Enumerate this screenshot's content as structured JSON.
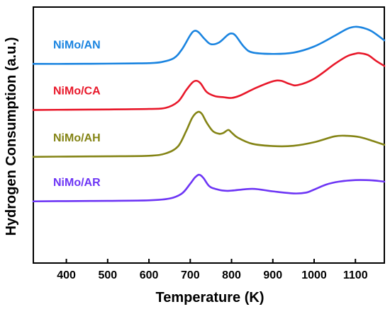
{
  "chart_data": {
    "type": "line",
    "xlabel": "Temperature (K)",
    "ylabel": "Hydrogen Consumption (a.u.)",
    "xlim": [
      320,
      1170
    ],
    "ylim": [
      0,
      1
    ],
    "xticks": [
      400,
      500,
      600,
      700,
      800,
      900,
      1000,
      1100
    ],
    "grid": false,
    "legend": "inline labels on left",
    "series": [
      {
        "name": "NiMo/AN",
        "color": "#1a84e0",
        "x": [
          320,
          400,
          500,
          560,
          600,
          630,
          660,
          680,
          700,
          710,
          720,
          735,
          750,
          770,
          790,
          800,
          810,
          830,
          850,
          900,
          950,
          1000,
          1050,
          1080,
          1100,
          1120,
          1140,
          1170
        ],
        "y": [
          0.778,
          0.778,
          0.779,
          0.78,
          0.781,
          0.785,
          0.8,
          0.835,
          0.89,
          0.907,
          0.902,
          0.875,
          0.855,
          0.862,
          0.89,
          0.897,
          0.888,
          0.845,
          0.823,
          0.817,
          0.822,
          0.846,
          0.888,
          0.915,
          0.923,
          0.918,
          0.905,
          0.87
        ]
      },
      {
        "name": "NiMo/CA",
        "color": "#e8182a",
        "x": [
          320,
          400,
          500,
          600,
          640,
          670,
          690,
          705,
          715,
          725,
          740,
          760,
          780,
          800,
          820,
          860,
          900,
          920,
          940,
          960,
          1000,
          1050,
          1080,
          1100,
          1110,
          1130,
          1150,
          1170
        ],
        "y": [
          0.598,
          0.599,
          0.6,
          0.602,
          0.606,
          0.63,
          0.675,
          0.705,
          0.712,
          0.702,
          0.668,
          0.652,
          0.648,
          0.645,
          0.654,
          0.685,
          0.71,
          0.712,
          0.7,
          0.695,
          0.72,
          0.778,
          0.808,
          0.818,
          0.82,
          0.813,
          0.79,
          0.77
        ]
      },
      {
        "name": "NiMo/AH",
        "color": "#848415",
        "x": [
          320,
          400,
          500,
          600,
          640,
          670,
          690,
          705,
          718,
          728,
          740,
          755,
          770,
          780,
          792,
          800,
          815,
          850,
          900,
          950,
          1000,
          1050,
          1080,
          1110,
          1140,
          1170
        ],
        "y": [
          0.415,
          0.416,
          0.417,
          0.419,
          0.428,
          0.455,
          0.515,
          0.568,
          0.59,
          0.583,
          0.548,
          0.515,
          0.505,
          0.508,
          0.52,
          0.51,
          0.49,
          0.466,
          0.457,
          0.458,
          0.472,
          0.495,
          0.497,
          0.492,
          0.478,
          0.462
        ]
      },
      {
        "name": "NiMo/AR",
        "color": "#6d35f5",
        "x": [
          320,
          400,
          500,
          600,
          650,
          680,
          700,
          712,
          722,
          732,
          745,
          760,
          790,
          850,
          900,
          950,
          980,
          1000,
          1030,
          1060,
          1100,
          1140,
          1170
        ],
        "y": [
          0.241,
          0.242,
          0.243,
          0.245,
          0.252,
          0.272,
          0.31,
          0.335,
          0.345,
          0.332,
          0.302,
          0.29,
          0.282,
          0.29,
          0.28,
          0.272,
          0.275,
          0.287,
          0.307,
          0.318,
          0.324,
          0.323,
          0.318
        ]
      }
    ]
  }
}
